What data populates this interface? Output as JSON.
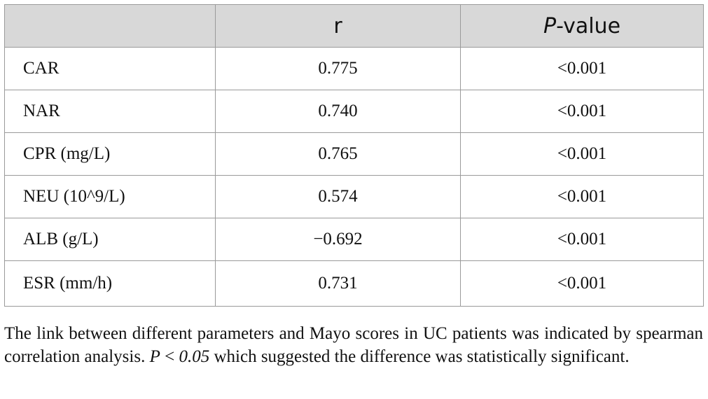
{
  "table": {
    "headers": {
      "col1": "",
      "col2": "r",
      "col3_italic": "P",
      "col3_rest": "-value"
    },
    "rows": [
      {
        "parameter": "CAR",
        "r": "0.775",
        "p": "<0.001"
      },
      {
        "parameter": "NAR",
        "r": "0.740",
        "p": "<0.001"
      },
      {
        "parameter": "CPR (mg/L)",
        "r": "0.765",
        "p": "<0.001"
      },
      {
        "parameter": "NEU (10^9/L)",
        "r": "0.574",
        "p": "<0.001"
      },
      {
        "parameter": "ALB (g/L)",
        "r": "−0.692",
        "p": "<0.001"
      },
      {
        "parameter": "ESR (mm/h)",
        "r": "0.731",
        "p": "<0.001"
      }
    ]
  },
  "footnote": {
    "part1": "The link between different parameters and Mayo scores in UC patients was indicated by spearman correlation analysis. ",
    "italic1": "P",
    "part2": " < ",
    "italic2": "0.05",
    "part3": " which suggested the difference was statistically significant."
  }
}
